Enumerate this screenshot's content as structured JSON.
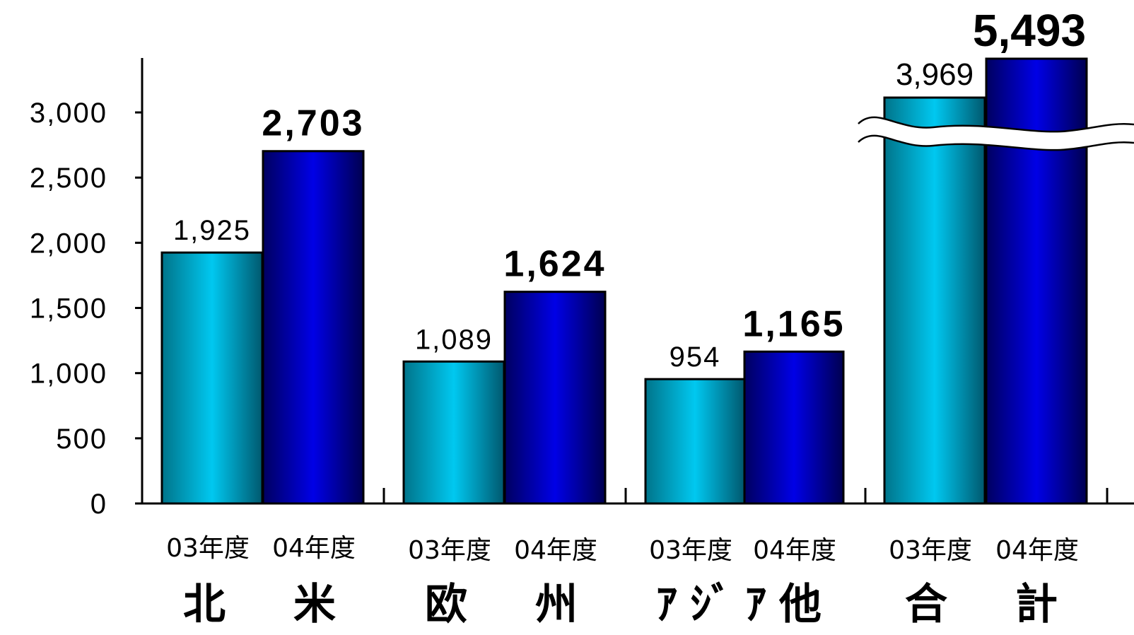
{
  "chart_data": {
    "type": "bar",
    "categories": [
      "北　米",
      "欧　州",
      "ｱｼﾞｱ他",
      "合　計"
    ],
    "series": [
      {
        "name": "03年度",
        "values": [
          1925,
          1089,
          954,
          3969
        ]
      },
      {
        "name": "04年度",
        "values": [
          2703,
          1624,
          1165,
          5493
        ]
      }
    ],
    "value_labels": {
      "03年度": [
        "1,925",
        "1,089",
        "954",
        "3,969"
      ],
      "04年度": [
        "2,703",
        "1,624",
        "1,165",
        "5,493"
      ]
    },
    "y_ticks": [
      "0",
      "500",
      "1,000",
      "1,500",
      "2,000",
      "2,500",
      "3,000"
    ],
    "y_tick_values": [
      0,
      500,
      1000,
      1500,
      2000,
      2500,
      3000
    ],
    "ylim": [
      0,
      3400
    ],
    "axis_break": true,
    "grid": false,
    "colors": {
      "03年度": "#00c8f0",
      "04年度": "#0000e0"
    }
  }
}
